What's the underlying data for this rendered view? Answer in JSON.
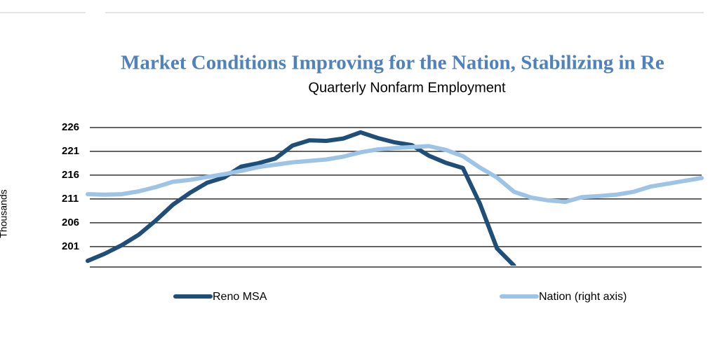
{
  "chart_data": {
    "type": "line",
    "title": "Market Conditions Improving for the Nation, Stabilizing in Re",
    "subtitle": "Quarterly Nonfarm Employment",
    "y_axis_label": "Thousands",
    "categories": [
      null,
      null,
      null,
      null,
      null,
      null,
      null,
      null,
      null,
      null,
      null,
      null,
      null,
      null,
      null,
      null,
      null,
      null,
      null,
      null,
      null,
      null,
      null,
      null,
      null,
      null,
      null,
      null,
      null,
      null,
      null,
      null,
      null,
      null,
      null,
      null,
      null
    ],
    "series": [
      {
        "name": "Reno MSA",
        "color": "#1f4e79",
        "values": [
          198,
          199.5,
          201.3,
          203.5,
          206.5,
          209.8,
          212.3,
          214.4,
          215.5,
          217.8,
          218.5,
          219.5,
          222.2,
          223.3,
          223.2,
          223.7,
          225,
          223.8,
          222.9,
          222.3,
          220.1,
          218.6,
          217.5,
          210,
          200.6,
          197,
          null,
          null,
          null,
          null,
          null,
          null,
          null,
          null,
          null,
          null,
          null
        ]
      },
      {
        "name": "Nation (right axis)",
        "color": "#9dc3e6",
        "axis": "y2",
        "values": [
          212,
          211.9,
          212,
          212.6,
          213.5,
          214.6,
          215,
          215.6,
          216.2,
          216.9,
          217.7,
          218.2,
          218.7,
          219,
          219.3,
          219.9,
          220.8,
          221.4,
          221.7,
          221.9,
          222.1,
          221.3,
          220,
          217.6,
          215.5,
          212.5,
          211.3,
          210.7,
          210.4,
          211.4,
          211.6,
          211.9,
          212.5,
          213.6,
          214.2,
          214.8,
          215.4
        ]
      }
    ],
    "ylim": [
      197,
      226
    ],
    "yticks": [
      201,
      206,
      211,
      216,
      221,
      226
    ],
    "y2lim": [
      197,
      226
    ],
    "grid": true,
    "legend": "bottom"
  }
}
